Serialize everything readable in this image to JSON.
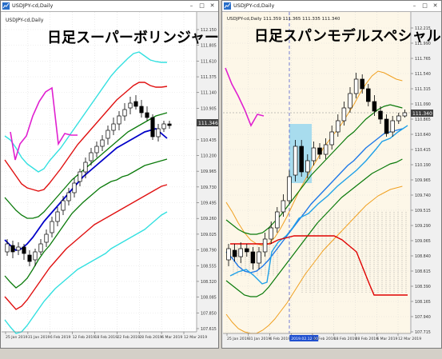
{
  "left": {
    "window_title": "USDJPY-cd,Daily",
    "chart_header": "USDJPY-cd,Daily",
    "headline": "日足スーパーボリンジャー",
    "price_tag": "111.346",
    "y_ticks": [
      "112.150",
      "111.805",
      "111.610",
      "111.375",
      "111.140",
      "110.905",
      "110.670",
      "110.435",
      "110.200",
      "109.965",
      "109.730",
      "109.495",
      "109.260",
      "109.025",
      "108.790",
      "108.555",
      "108.320",
      "108.085",
      "107.850",
      "107.615"
    ],
    "x_ticks": [
      "25 Jan 2019",
      "31 Jan 2019",
      "6 Feb 2019",
      "12 Feb 2019",
      "18 Feb 2019",
      "22 Feb 2019",
      "28 Feb 2019",
      "6 Mar 2019",
      "12 Mar 2019"
    ]
  },
  "right": {
    "window_title": "USDJPY-cd,Daily",
    "chart_header": "USDJPY-cd,Daily 111.359 111.365 111.335 111.340",
    "headline": "日足スパンモデルスペシャル",
    "price_tag": "111.340",
    "y_ticks": [
      "112.215",
      "111.990",
      "111.765",
      "111.540",
      "111.315",
      "111.090",
      "110.865",
      "110.640",
      "110.415",
      "110.190",
      "109.965",
      "109.740",
      "109.515",
      "109.290",
      "109.065",
      "108.840",
      "108.615",
      "108.390",
      "108.165",
      "107.940",
      "107.715"
    ],
    "x_ticks": [
      "25 Jan 2019",
      "31 Jan 2019",
      "6 Feb 2019",
      "2019.02.12 00:00",
      "12 Feb 2019",
      "18 Feb 2019",
      "28 Feb 2019",
      "6 Mar 2019",
      "12 Mar 2019"
    ]
  },
  "colors": {
    "chart_bg_left": "#ffffff",
    "chart_bg_right": "#fdf7e8",
    "bullish_candle": "#ffffff",
    "bearish_candle": "#000000",
    "bb_outer": "#33e0e0",
    "bb_mid": "#e01010",
    "bb_inner": "#0a7a0a",
    "center_line": "#0000c8",
    "lagging_span": "#e020d0",
    "span_blue": "#1e78e8",
    "span_red": "#e00000",
    "span_orange": "#f0a020",
    "highlight_box": "#a8dcee"
  }
}
